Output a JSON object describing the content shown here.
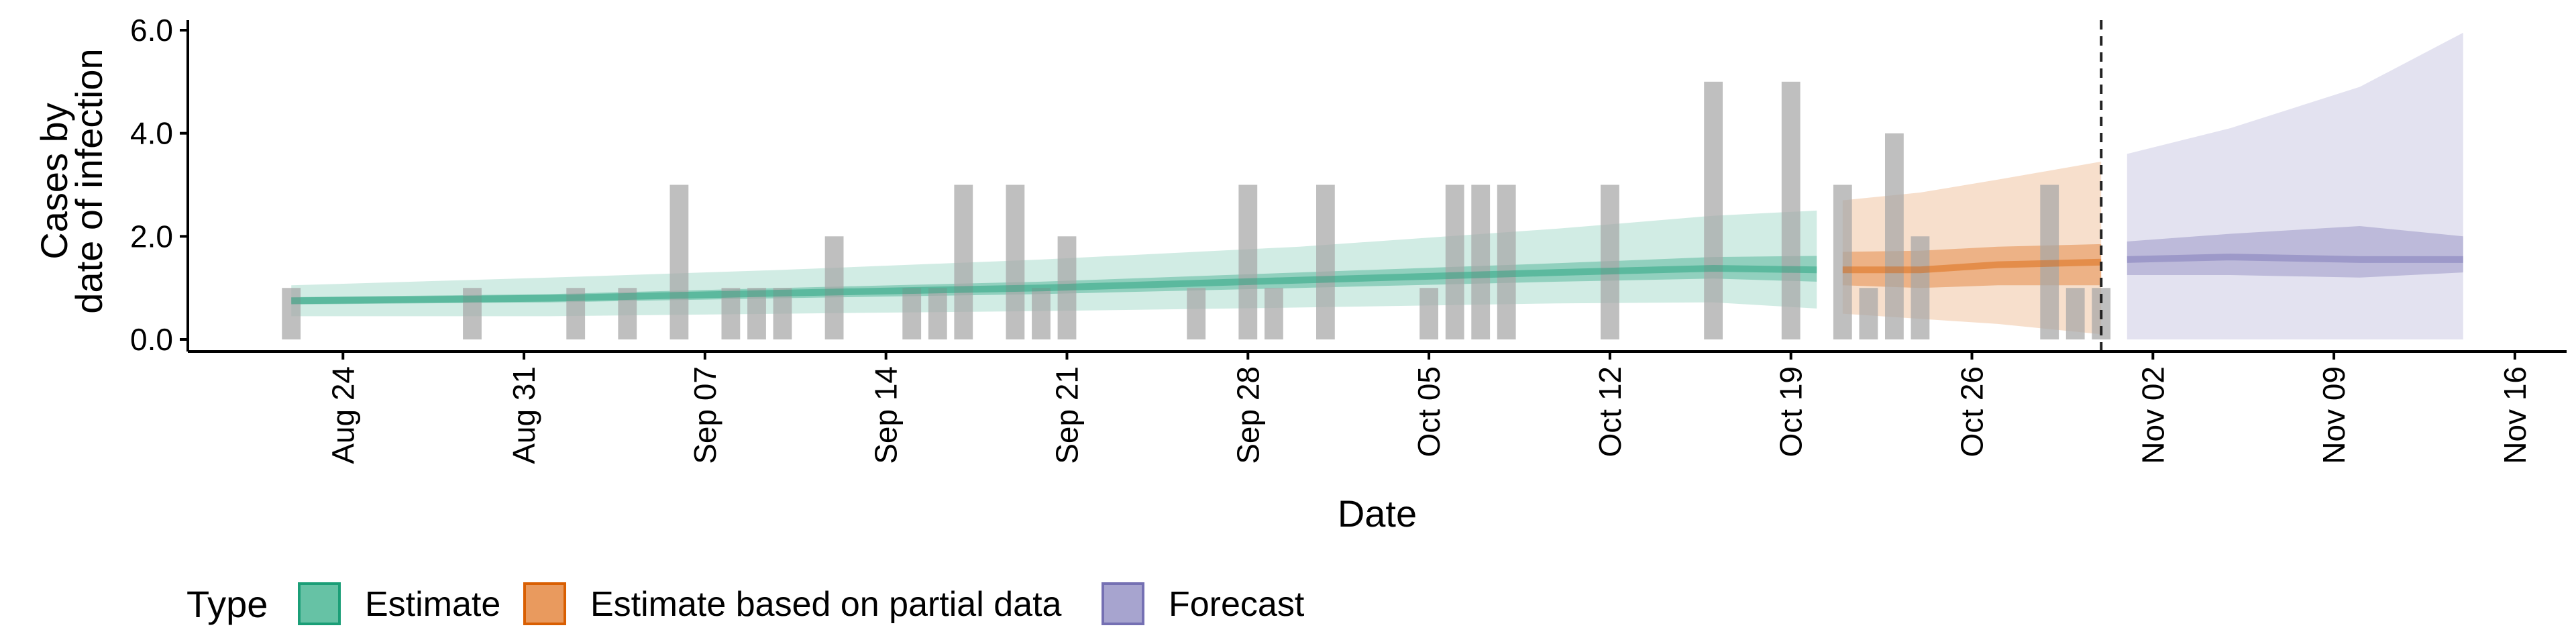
{
  "chart_data": {
    "type": "area",
    "xlabel": "Date",
    "ylabel_lines": [
      "Cases by",
      "date of infection"
    ],
    "ylim": [
      0,
      6.2
    ],
    "yticks": [
      {
        "value": 0,
        "label": "0.0"
      },
      {
        "value": 2,
        "label": "2.0"
      },
      {
        "value": 4,
        "label": "4.0"
      },
      {
        "value": 6,
        "label": "6.0"
      }
    ],
    "xlim": [
      "2020-08-18",
      "2020-11-18"
    ],
    "xticks": [
      {
        "date": "2020-08-24",
        "label": "Aug 24"
      },
      {
        "date": "2020-08-31",
        "label": "Aug 31"
      },
      {
        "date": "2020-09-07",
        "label": "Sep 07"
      },
      {
        "date": "2020-09-14",
        "label": "Sep 14"
      },
      {
        "date": "2020-09-21",
        "label": "Sep 21"
      },
      {
        "date": "2020-09-28",
        "label": "Sep 28"
      },
      {
        "date": "2020-10-05",
        "label": "Oct 05"
      },
      {
        "date": "2020-10-12",
        "label": "Oct 12"
      },
      {
        "date": "2020-10-19",
        "label": "Oct 19"
      },
      {
        "date": "2020-10-26",
        "label": "Oct 26"
      },
      {
        "date": "2020-11-02",
        "label": "Nov 02"
      },
      {
        "date": "2020-11-09",
        "label": "Nov 09"
      },
      {
        "date": "2020-11-16",
        "label": "Nov 16"
      }
    ],
    "forecast_start_line": "2020-10-31",
    "reported_cases": [
      {
        "date": "2020-08-22",
        "value": 1
      },
      {
        "date": "2020-08-29",
        "value": 1
      },
      {
        "date": "2020-09-02",
        "value": 1
      },
      {
        "date": "2020-09-04",
        "value": 1
      },
      {
        "date": "2020-09-06",
        "value": 3
      },
      {
        "date": "2020-09-08",
        "value": 1
      },
      {
        "date": "2020-09-09",
        "value": 1
      },
      {
        "date": "2020-09-10",
        "value": 1
      },
      {
        "date": "2020-09-12",
        "value": 2
      },
      {
        "date": "2020-09-15",
        "value": 1
      },
      {
        "date": "2020-09-16",
        "value": 1
      },
      {
        "date": "2020-09-17",
        "value": 3
      },
      {
        "date": "2020-09-19",
        "value": 3
      },
      {
        "date": "2020-09-20",
        "value": 1
      },
      {
        "date": "2020-09-21",
        "value": 2
      },
      {
        "date": "2020-09-26",
        "value": 1
      },
      {
        "date": "2020-09-28",
        "value": 3
      },
      {
        "date": "2020-09-29",
        "value": 1
      },
      {
        "date": "2020-10-01",
        "value": 3
      },
      {
        "date": "2020-10-05",
        "value": 1
      },
      {
        "date": "2020-10-06",
        "value": 3
      },
      {
        "date": "2020-10-07",
        "value": 3
      },
      {
        "date": "2020-10-08",
        "value": 3
      },
      {
        "date": "2020-10-12",
        "value": 3
      },
      {
        "date": "2020-10-16",
        "value": 5
      },
      {
        "date": "2020-10-19",
        "value": 5
      },
      {
        "date": "2020-10-21",
        "value": 3
      },
      {
        "date": "2020-10-22",
        "value": 1
      },
      {
        "date": "2020-10-23",
        "value": 4
      },
      {
        "date": "2020-10-24",
        "value": 2
      },
      {
        "date": "2020-10-29",
        "value": 3
      },
      {
        "date": "2020-10-30",
        "value": 1
      },
      {
        "date": "2020-10-31",
        "value": 1
      }
    ],
    "series": [
      {
        "name": "Estimate",
        "color": "#1b9e77",
        "points": [
          {
            "date": "2020-08-22",
            "median": 0.75,
            "q25": 0.68,
            "q75": 0.82,
            "q5": 0.45,
            "q95": 1.05
          },
          {
            "date": "2020-09-01",
            "median": 0.8,
            "q25": 0.72,
            "q75": 0.88,
            "q5": 0.45,
            "q95": 1.2
          },
          {
            "date": "2020-09-10",
            "median": 0.9,
            "q25": 0.8,
            "q75": 1.0,
            "q5": 0.5,
            "q95": 1.35
          },
          {
            "date": "2020-09-20",
            "median": 1.0,
            "q25": 0.88,
            "q75": 1.12,
            "q5": 0.55,
            "q95": 1.55
          },
          {
            "date": "2020-09-30",
            "median": 1.15,
            "q25": 1.0,
            "q75": 1.3,
            "q5": 0.62,
            "q95": 1.8
          },
          {
            "date": "2020-10-10",
            "median": 1.3,
            "q25": 1.12,
            "q75": 1.48,
            "q5": 0.7,
            "q95": 2.15
          },
          {
            "date": "2020-10-16",
            "median": 1.38,
            "q25": 1.18,
            "q75": 1.6,
            "q5": 0.72,
            "q95": 2.4
          },
          {
            "date": "2020-10-20",
            "median": 1.35,
            "q25": 1.12,
            "q75": 1.62,
            "q5": 0.6,
            "q95": 2.5
          }
        ]
      },
      {
        "name": "Estimate based on partial data",
        "color": "#d95f02",
        "points": [
          {
            "date": "2020-10-21",
            "median": 1.35,
            "q25": 1.05,
            "q75": 1.7,
            "q5": 0.5,
            "q95": 2.7
          },
          {
            "date": "2020-10-24",
            "median": 1.35,
            "q25": 1.0,
            "q75": 1.72,
            "q5": 0.4,
            "q95": 2.85
          },
          {
            "date": "2020-10-27",
            "median": 1.45,
            "q25": 1.05,
            "q75": 1.8,
            "q5": 0.3,
            "q95": 3.1
          },
          {
            "date": "2020-10-31",
            "median": 1.5,
            "q25": 1.05,
            "q75": 1.85,
            "q5": 0.1,
            "q95": 3.45
          }
        ]
      },
      {
        "name": "Forecast",
        "color": "#7570b3",
        "points": [
          {
            "date": "2020-11-01",
            "median": 1.55,
            "q25": 1.25,
            "q75": 1.9,
            "q5": 0.0,
            "q95": 3.6
          },
          {
            "date": "2020-11-05",
            "median": 1.6,
            "q25": 1.25,
            "q75": 2.05,
            "q5": 0.0,
            "q95": 4.1
          },
          {
            "date": "2020-11-10",
            "median": 1.55,
            "q25": 1.2,
            "q75": 2.2,
            "q5": 0.0,
            "q95": 4.9
          },
          {
            "date": "2020-11-14",
            "median": 1.55,
            "q25": 1.3,
            "q75": 2.0,
            "q5": 0.0,
            "q95": 5.95
          }
        ]
      }
    ],
    "legend": {
      "title": "Type",
      "position": "bottom-left",
      "items": [
        {
          "label": "Estimate",
          "fill": "#66c2a5",
          "stroke": "#1b9e77"
        },
        {
          "label": "Estimate based on partial data",
          "fill": "#e99a5e",
          "stroke": "#d95f02"
        },
        {
          "label": "Forecast",
          "fill": "#a7a4cf",
          "stroke": "#7570b3"
        }
      ]
    }
  }
}
